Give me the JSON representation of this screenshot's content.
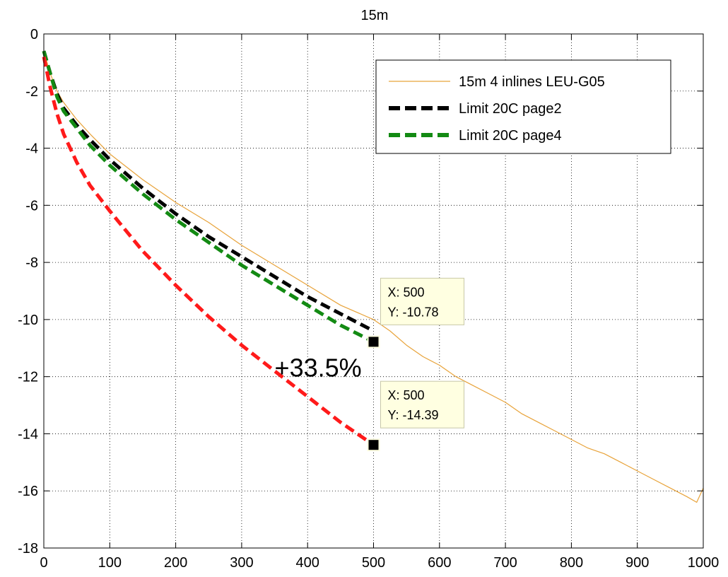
{
  "chart_data": {
    "type": "line",
    "title": "15m",
    "xlabel": "",
    "ylabel": "",
    "xlim": [
      0,
      1000
    ],
    "ylim": [
      -18,
      0
    ],
    "xticks": [
      0,
      100,
      200,
      300,
      400,
      500,
      600,
      700,
      800,
      900,
      1000
    ],
    "yticks": [
      0,
      -2,
      -4,
      -6,
      -8,
      -10,
      -12,
      -14,
      -16,
      -18
    ],
    "grid": true,
    "legend_position": "top-right",
    "series": [
      {
        "name": "15m 4 inlines LEU-G05",
        "color": "#e8a33a",
        "style": "solid-thin",
        "x": [
          0,
          10,
          20,
          30,
          50,
          70,
          100,
          150,
          200,
          250,
          300,
          350,
          400,
          450,
          500,
          525,
          550,
          575,
          600,
          625,
          650,
          675,
          700,
          725,
          750,
          775,
          800,
          825,
          850,
          875,
          900,
          925,
          950,
          975,
          990,
          1000
        ],
        "y": [
          -0.6,
          -1.4,
          -2.0,
          -2.4,
          -3.0,
          -3.5,
          -4.2,
          -5.1,
          -5.9,
          -6.6,
          -7.4,
          -8.1,
          -8.8,
          -9.5,
          -10.0,
          -10.4,
          -10.9,
          -11.3,
          -11.6,
          -12.0,
          -12.3,
          -12.6,
          -12.9,
          -13.3,
          -13.6,
          -13.9,
          -14.2,
          -14.5,
          -14.7,
          -15.0,
          -15.3,
          -15.6,
          -15.9,
          -16.2,
          -16.4,
          -15.9
        ]
      },
      {
        "name": "Limit 20C page2",
        "color": "#000000",
        "style": "dashed-thick",
        "x": [
          0,
          10,
          20,
          30,
          50,
          70,
          100,
          150,
          200,
          250,
          300,
          350,
          400,
          450,
          500
        ],
        "y": [
          -0.6,
          -1.4,
          -2.1,
          -2.6,
          -3.2,
          -3.7,
          -4.4,
          -5.4,
          -6.3,
          -7.1,
          -7.8,
          -8.5,
          -9.2,
          -9.8,
          -10.4
        ]
      },
      {
        "name": "Limit 20C page4",
        "color": "#138a13",
        "style": "dashed-thick",
        "x": [
          0,
          10,
          20,
          30,
          50,
          70,
          100,
          150,
          200,
          250,
          300,
          350,
          400,
          450,
          500
        ],
        "y": [
          -0.6,
          -1.4,
          -2.2,
          -2.7,
          -3.3,
          -3.9,
          -4.6,
          -5.6,
          -6.5,
          -7.3,
          -8.1,
          -8.8,
          -9.5,
          -10.2,
          -10.78
        ]
      },
      {
        "name": "",
        "color": "#ff1a1a",
        "style": "dashed-thick",
        "x": [
          0,
          10,
          20,
          30,
          50,
          70,
          100,
          150,
          200,
          250,
          300,
          350,
          400,
          450,
          500
        ],
        "y": [
          -0.8,
          -1.9,
          -2.8,
          -3.5,
          -4.5,
          -5.3,
          -6.2,
          -7.6,
          -8.8,
          -9.9,
          -10.9,
          -11.8,
          -12.7,
          -13.6,
          -14.39
        ]
      }
    ],
    "datatips": [
      {
        "x_text": "X: 500",
        "y_text": "Y: -10.78",
        "x": 500,
        "y": -10.78
      },
      {
        "x_text": "X: 500",
        "y_text": "Y: -14.39",
        "x": 500,
        "y": -14.39
      }
    ],
    "annotation": {
      "text": "+33.5%",
      "x": 350,
      "y": -11.7
    }
  }
}
